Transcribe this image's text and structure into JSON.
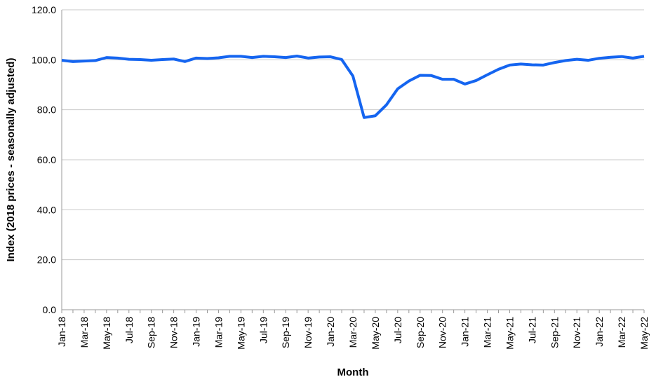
{
  "chart_data": {
    "type": "line",
    "x_label": "Month",
    "y_label": "Index (2018 prices - seasonally adjusted)",
    "categories": [
      "Jan-18",
      null,
      "Mar-18",
      null,
      "May-18",
      null,
      "Jul-18",
      null,
      "Sep-18",
      null,
      "Nov-18",
      null,
      "Jan-19",
      null,
      "Mar-19",
      null,
      "May-19",
      null,
      "Jul-19",
      null,
      "Sep-19",
      null,
      "Nov-19",
      null,
      "Jan-20",
      null,
      "Mar-20",
      null,
      "May-20",
      null,
      "Jul-20",
      null,
      "Sep-20",
      null,
      "Nov-20",
      null,
      "Jan-21",
      null,
      "Mar-21",
      null,
      "May-21",
      null,
      "Jul-21",
      null,
      "Sep-21",
      null,
      "Nov-21",
      null,
      "Jan-22",
      null,
      "Mar-22",
      null,
      "May-22"
    ],
    "series": [
      {
        "color": "#1565f0",
        "values": [
          99.8,
          99.3,
          99.5,
          99.7,
          100.9,
          100.7,
          100.2,
          100.1,
          99.8,
          100.1,
          100.3,
          99.3,
          100.7,
          100.5,
          100.8,
          101.4,
          101.4,
          100.9,
          101.4,
          101.2,
          100.9,
          101.5,
          100.7,
          101.1,
          101.2,
          100.1,
          93.5,
          76.9,
          77.6,
          82.0,
          88.4,
          91.5,
          93.8,
          93.7,
          92.2,
          92.2,
          90.3,
          91.7,
          94.0,
          96.2,
          97.9,
          98.3,
          98.0,
          97.9,
          98.9,
          99.7,
          100.2,
          99.8,
          100.6,
          101.0,
          101.3,
          100.7,
          101.4
        ]
      }
    ],
    "ylim": [
      0,
      120
    ],
    "yticks": [
      {
        "value": 0,
        "label": "0.0"
      },
      {
        "value": 20,
        "label": "20.0"
      },
      {
        "value": 40,
        "label": "40.0"
      },
      {
        "value": 60,
        "label": "60.0"
      },
      {
        "value": 80,
        "label": "80.0"
      },
      {
        "value": 100,
        "label": "100.0"
      },
      {
        "value": 120,
        "label": "120.0"
      }
    ],
    "grid": true
  }
}
